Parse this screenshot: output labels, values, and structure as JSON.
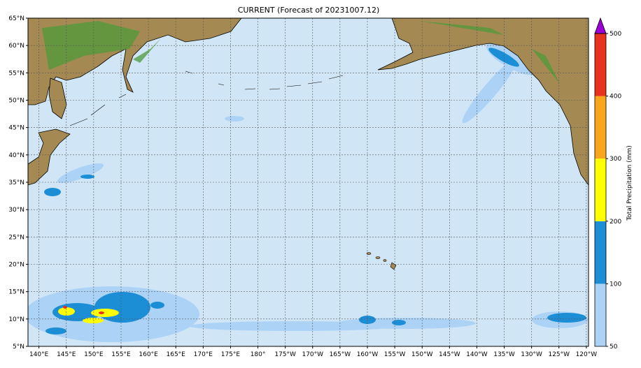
{
  "map": {
    "title": "CURRENT (Forecast of 20231007.12)",
    "xlim": [
      138,
      240.4
    ],
    "ylim": [
      5,
      65
    ],
    "xticks": [
      {
        "value": 140,
        "label": "140°E"
      },
      {
        "value": 145,
        "label": "145°E"
      },
      {
        "value": 150,
        "label": "150°E"
      },
      {
        "value": 155,
        "label": "155°E"
      },
      {
        "value": 160,
        "label": "160°E"
      },
      {
        "value": 165,
        "label": "165°E"
      },
      {
        "value": 170,
        "label": "170°E"
      },
      {
        "value": 175,
        "label": "175°E"
      },
      {
        "value": 180,
        "label": "180°"
      },
      {
        "value": 185,
        "label": "175°W"
      },
      {
        "value": 190,
        "label": "170°W"
      },
      {
        "value": 195,
        "label": "165°W"
      },
      {
        "value": 200,
        "label": "160°W"
      },
      {
        "value": 205,
        "label": "155°W"
      },
      {
        "value": 210,
        "label": "150°W"
      },
      {
        "value": 215,
        "label": "145°W"
      },
      {
        "value": 220,
        "label": "140°W"
      },
      {
        "value": 225,
        "label": "135°W"
      },
      {
        "value": 230,
        "label": "130°W"
      },
      {
        "value": 235,
        "label": "125°W"
      },
      {
        "value": 240,
        "label": "120°W"
      }
    ],
    "yticks": [
      {
        "value": 5,
        "label": "5°N"
      },
      {
        "value": 10,
        "label": "10°N"
      },
      {
        "value": 15,
        "label": "15°N"
      },
      {
        "value": 20,
        "label": "20°N"
      },
      {
        "value": 25,
        "label": "25°N"
      },
      {
        "value": 30,
        "label": "30°N"
      },
      {
        "value": 35,
        "label": "35°N"
      },
      {
        "value": 40,
        "label": "40°N"
      },
      {
        "value": 45,
        "label": "45°N"
      },
      {
        "value": 50,
        "label": "50°N"
      },
      {
        "value": 55,
        "label": "55°N"
      },
      {
        "value": 60,
        "label": "60°N"
      },
      {
        "value": 65,
        "label": "65°N"
      }
    ],
    "grid": true
  },
  "colorbar": {
    "label": "Total Precipitation (mm)",
    "levels": [
      50,
      100,
      200,
      300,
      400,
      500
    ],
    "colors": [
      "#acd3f6",
      "#1b8ed6",
      "#ffff00",
      "#f7a61e",
      "#e8321f"
    ],
    "extend_color": "#9b00d6"
  }
}
